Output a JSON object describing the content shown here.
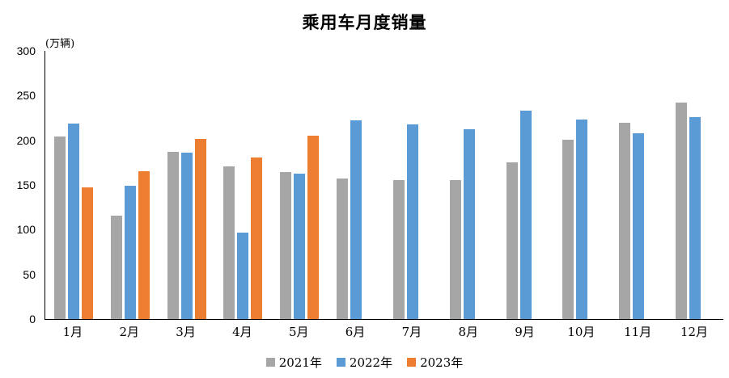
{
  "chart_data": {
    "type": "bar",
    "title": "乘用车月度销量",
    "unit_label": "(万辆)",
    "categories": [
      "1月",
      "2月",
      "3月",
      "4月",
      "5月",
      "6月",
      "7月",
      "8月",
      "9月",
      "10月",
      "11月",
      "12月"
    ],
    "series": [
      {
        "name": "2021年",
        "color": "#a6a6a6",
        "values": [
          204.5,
          115.6,
          187.4,
          170.4,
          164.6,
          156.9,
          155.1,
          155.2,
          175.1,
          200.7,
          219.2,
          242.2
        ]
      },
      {
        "name": "2022年",
        "color": "#5b9bd5",
        "values": [
          218.6,
          148.7,
          186.4,
          96.5,
          162.3,
          222.2,
          217.4,
          212.5,
          233.2,
          223.1,
          207.5,
          226.3
        ]
      },
      {
        "name": "2023年",
        "color": "#ed7d31",
        "values": [
          146.9,
          165.3,
          201.7,
          181.1,
          205.1,
          null,
          null,
          null,
          null,
          null,
          null,
          null
        ]
      }
    ],
    "ylim": [
      0,
      300
    ],
    "yticks": [
      0,
      50,
      100,
      150,
      200,
      250,
      300
    ],
    "grid": false,
    "legend_position": "bottom",
    "axis_color": "#000000"
  }
}
